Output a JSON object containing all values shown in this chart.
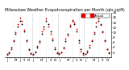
{
  "title": "Milwaukee Weather Evapotranspiration per Month (qts sq/ft)",
  "title_fontsize": 3.5,
  "background_color": "#ffffff",
  "dot_color_actual": "#dd0000",
  "dot_color_normal": "#000000",
  "legend_label_actual": "Actual",
  "ylim": [
    0,
    18
  ],
  "ytick_values": [
    2,
    4,
    6,
    8,
    10,
    12,
    14,
    16,
    18
  ],
  "ytick_labels": [
    "2",
    "4",
    "6",
    "8",
    "10",
    "12",
    "14",
    "16",
    "18"
  ],
  "ylabel_fontsize": 3.0,
  "xlabel_fontsize": 2.8,
  "dot_size": 1.8,
  "normal_values": [
    1.5,
    2.2,
    4.0,
    6.5,
    9.5,
    12.5,
    14.5,
    13.5,
    10.5,
    7.0,
    3.5,
    1.8,
    1.5,
    2.2,
    4.0,
    6.5,
    9.5,
    12.5,
    14.5,
    13.5,
    10.5,
    7.0,
    3.5,
    1.8,
    1.5,
    2.2,
    4.0,
    6.5,
    9.5,
    12.5,
    14.5,
    13.5,
    10.5,
    7.0,
    3.5,
    1.8,
    1.5,
    2.2,
    4.0,
    6.5,
    9.5,
    12.5,
    14.5,
    13.5,
    10.5,
    7.0,
    3.5,
    1.8
  ],
  "actual_values": [
    1.2,
    1.8,
    3.5,
    7.0,
    10.0,
    13.5,
    16.0,
    14.5,
    11.0,
    6.5,
    3.0,
    1.5,
    1.0,
    2.5,
    4.5,
    6.0,
    10.5,
    11.5,
    15.5,
    12.5,
    9.5,
    7.5,
    4.0,
    2.0,
    1.8,
    2.0,
    3.8,
    7.5,
    9.0,
    13.0,
    15.0,
    14.0,
    11.5,
    6.0,
    2.5,
    1.2,
    1.5,
    2.8,
    5.0,
    7.0,
    10.0,
    14.0,
    15.5,
    13.0,
    10.0,
    6.5,
    3.5,
    2.0
  ],
  "x_labels": [
    "J",
    "",
    "",
    "",
    "M",
    "",
    "J",
    "",
    "S",
    "",
    "N",
    "",
    "J",
    "",
    "",
    "",
    "M",
    "",
    "J",
    "",
    "S",
    "",
    "N",
    "",
    "J",
    "",
    "",
    "",
    "M",
    "",
    "J",
    "",
    "S",
    "",
    "N",
    "",
    "J",
    "",
    "",
    "",
    "M",
    "",
    "J",
    "",
    "S",
    "",
    "N",
    ""
  ],
  "year_dividers": [
    12,
    24,
    36
  ],
  "divider_color": "#999999",
  "divider_style": "dotted",
  "grid_color": "#cccccc",
  "legend_color": "#dd0000"
}
